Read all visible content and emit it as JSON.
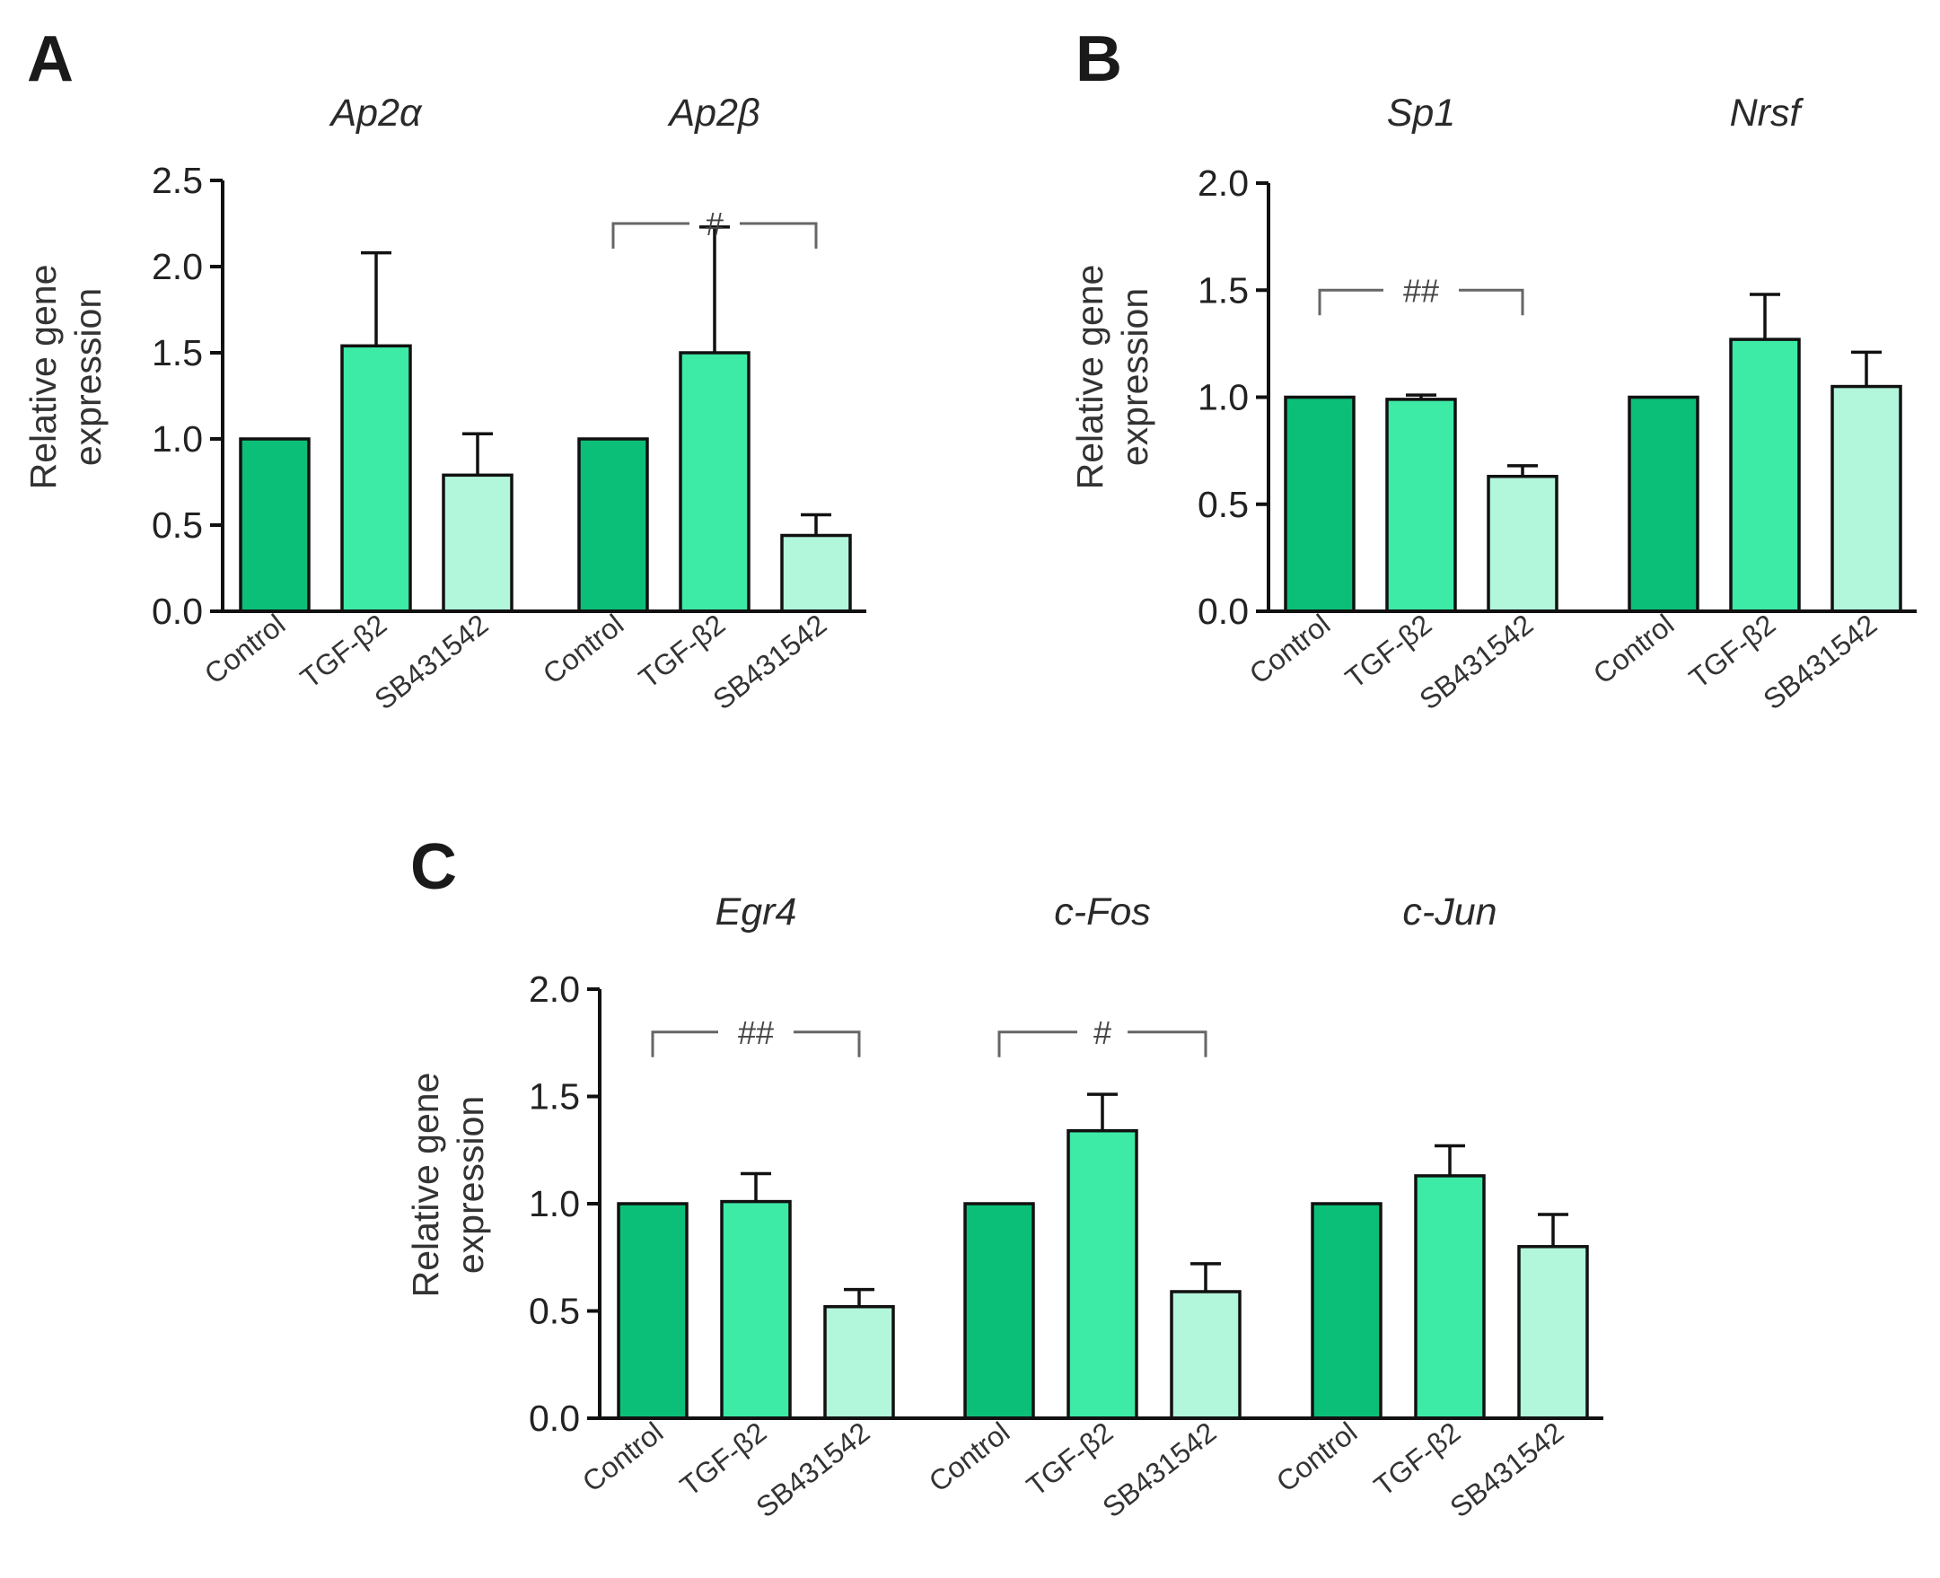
{
  "colors": {
    "control": "#0cbf78",
    "tgf": "#3deaa6",
    "sb": "#b2f6dc",
    "stroke": "#111111",
    "bracket": "#666666"
  },
  "chart_data": [
    {
      "type": "bar",
      "panel": "A",
      "ylabel": [
        "Relative gene",
        "expression"
      ],
      "ylim": [
        0,
        2.5
      ],
      "yticks": [
        "0.0",
        "0.5",
        "1.0",
        "1.5",
        "2.0",
        "2.5"
      ],
      "categories": [
        "Control",
        "TGF-β2",
        "SB431542"
      ],
      "groups": [
        {
          "gene": "Ap2α",
          "values": [
            1.0,
            1.54,
            0.79
          ],
          "errors": [
            0,
            0.54,
            0.24
          ]
        },
        {
          "gene": "Ap2β",
          "values": [
            1.0,
            1.5,
            0.44
          ],
          "errors": [
            0,
            0.73,
            0.12
          ]
        }
      ],
      "significance": [
        {
          "group": 1,
          "label": "#",
          "y": 2.25
        }
      ]
    },
    {
      "type": "bar",
      "panel": "B",
      "ylabel": [
        "Relative gene",
        "expression"
      ],
      "ylim": [
        0,
        2.0
      ],
      "yticks": [
        "0.0",
        "0.5",
        "1.0",
        "1.5",
        "2.0"
      ],
      "categories": [
        "Control",
        "TGF-β2",
        "SB431542"
      ],
      "groups": [
        {
          "gene": "Sp1",
          "values": [
            1.0,
            0.99,
            0.63
          ],
          "errors": [
            0,
            0.02,
            0.05
          ]
        },
        {
          "gene": "Nrsf",
          "values": [
            1.0,
            1.27,
            1.05
          ],
          "errors": [
            0,
            0.21,
            0.16
          ]
        }
      ],
      "significance": [
        {
          "group": 0,
          "label": "##",
          "y": 1.5
        }
      ]
    },
    {
      "type": "bar",
      "panel": "C",
      "ylabel": [
        "Relative gene",
        "expression"
      ],
      "ylim": [
        0,
        2.0
      ],
      "yticks": [
        "0.0",
        "0.5",
        "1.0",
        "1.5",
        "2.0"
      ],
      "categories": [
        "Control",
        "TGF-β2",
        "SB431542"
      ],
      "groups": [
        {
          "gene": "Egr4",
          "values": [
            1.0,
            1.01,
            0.52
          ],
          "errors": [
            0,
            0.13,
            0.08
          ]
        },
        {
          "gene": "c-Fos",
          "values": [
            1.0,
            1.34,
            0.59
          ],
          "errors": [
            0,
            0.17,
            0.13
          ]
        },
        {
          "gene": "c-Jun",
          "values": [
            1.0,
            1.13,
            0.8
          ],
          "errors": [
            0,
            0.14,
            0.15
          ]
        }
      ],
      "significance": [
        {
          "group": 0,
          "label": "##",
          "y": 1.8
        },
        {
          "group": 1,
          "label": "#",
          "y": 1.8
        }
      ]
    }
  ]
}
